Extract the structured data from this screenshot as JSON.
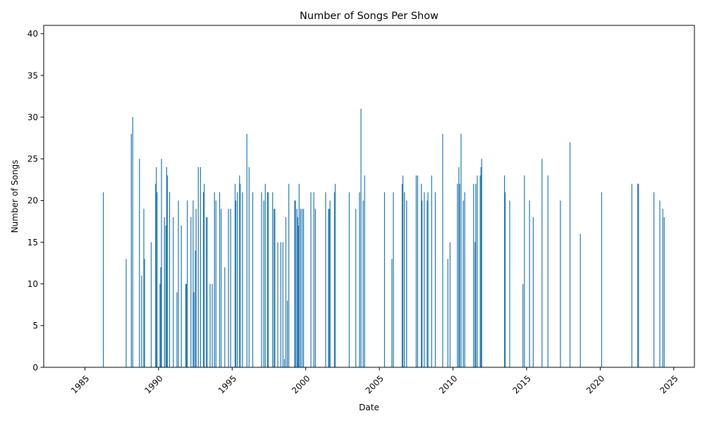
{
  "chart_data": {
    "type": "bar",
    "title": "Number of Songs Per Show",
    "xlabel": "Date",
    "ylabel": "Number of Songs",
    "xlim": [
      1982.2,
      2026.4
    ],
    "ylim": [
      0,
      41
    ],
    "x_ticks": [
      1985,
      1990,
      1995,
      2000,
      2005,
      2010,
      2015,
      2020,
      2025
    ],
    "y_ticks": [
      0,
      5,
      10,
      15,
      20,
      25,
      30,
      35,
      40
    ],
    "grid": false,
    "legend": "none",
    "bar_color": "#1f77b4",
    "x_unit": "decimal year",
    "points": [
      [
        1986.25,
        21
      ],
      [
        1987.8,
        13
      ],
      [
        1988.15,
        28
      ],
      [
        1988.25,
        30
      ],
      [
        1988.7,
        25
      ],
      [
        1988.85,
        11
      ],
      [
        1989.0,
        19
      ],
      [
        1989.05,
        13
      ],
      [
        1989.5,
        15
      ],
      [
        1989.8,
        22
      ],
      [
        1989.85,
        24
      ],
      [
        1989.9,
        21
      ],
      [
        1990.1,
        10
      ],
      [
        1990.15,
        12
      ],
      [
        1990.2,
        25
      ],
      [
        1990.4,
        18
      ],
      [
        1990.5,
        17
      ],
      [
        1990.55,
        24
      ],
      [
        1990.6,
        23
      ],
      [
        1990.75,
        21
      ],
      [
        1991.0,
        18
      ],
      [
        1991.25,
        9
      ],
      [
        1991.35,
        20
      ],
      [
        1991.55,
        17
      ],
      [
        1991.85,
        10
      ],
      [
        1991.9,
        10
      ],
      [
        1991.95,
        20
      ],
      [
        1992.2,
        18
      ],
      [
        1992.35,
        20
      ],
      [
        1992.4,
        9
      ],
      [
        1992.5,
        14
      ],
      [
        1992.55,
        19
      ],
      [
        1992.7,
        24
      ],
      [
        1992.85,
        24
      ],
      [
        1993.05,
        21
      ],
      [
        1993.1,
        22
      ],
      [
        1993.25,
        18
      ],
      [
        1993.3,
        18
      ],
      [
        1993.5,
        10
      ],
      [
        1993.65,
        10
      ],
      [
        1993.8,
        21
      ],
      [
        1993.9,
        20
      ],
      [
        1994.15,
        21
      ],
      [
        1994.25,
        19
      ],
      [
        1994.5,
        12
      ],
      [
        1994.75,
        19
      ],
      [
        1994.9,
        19
      ],
      [
        1995.2,
        22
      ],
      [
        1995.25,
        20
      ],
      [
        1995.35,
        21
      ],
      [
        1995.5,
        23
      ],
      [
        1995.55,
        22
      ],
      [
        1995.7,
        21
      ],
      [
        1996.0,
        28
      ],
      [
        1996.15,
        24
      ],
      [
        1996.4,
        21
      ],
      [
        1997.0,
        21
      ],
      [
        1997.15,
        20
      ],
      [
        1997.25,
        22
      ],
      [
        1997.4,
        21
      ],
      [
        1997.45,
        21
      ],
      [
        1997.75,
        21
      ],
      [
        1997.85,
        19
      ],
      [
        1997.9,
        19
      ],
      [
        1998.1,
        15
      ],
      [
        1998.3,
        15
      ],
      [
        1998.45,
        15
      ],
      [
        1998.55,
        1
      ],
      [
        1998.65,
        18
      ],
      [
        1998.75,
        8
      ],
      [
        1998.85,
        22
      ],
      [
        1999.25,
        20
      ],
      [
        1999.3,
        20
      ],
      [
        1999.4,
        19
      ],
      [
        1999.45,
        18
      ],
      [
        1999.5,
        17
      ],
      [
        1999.55,
        22
      ],
      [
        1999.65,
        19
      ],
      [
        1999.75,
        19
      ],
      [
        1999.85,
        19
      ],
      [
        2000.35,
        21
      ],
      [
        2000.55,
        21
      ],
      [
        2000.65,
        19
      ],
      [
        2001.35,
        21
      ],
      [
        2001.55,
        19
      ],
      [
        2001.6,
        19
      ],
      [
        2001.65,
        20
      ],
      [
        2001.95,
        21
      ],
      [
        2002.0,
        22
      ],
      [
        2002.95,
        21
      ],
      [
        2003.4,
        19
      ],
      [
        2003.65,
        21
      ],
      [
        2003.75,
        31
      ],
      [
        2003.9,
        20
      ],
      [
        2004.0,
        23
      ],
      [
        2005.35,
        21
      ],
      [
        2005.85,
        13
      ],
      [
        2005.95,
        21
      ],
      [
        2006.55,
        22
      ],
      [
        2006.6,
        23
      ],
      [
        2006.7,
        21
      ],
      [
        2006.85,
        20
      ],
      [
        2007.5,
        23
      ],
      [
        2007.6,
        23
      ],
      [
        2007.85,
        22
      ],
      [
        2007.9,
        20
      ],
      [
        2008.05,
        21
      ],
      [
        2008.25,
        20
      ],
      [
        2008.3,
        21
      ],
      [
        2008.55,
        23
      ],
      [
        2008.8,
        21
      ],
      [
        2009.3,
        28
      ],
      [
        2009.65,
        13
      ],
      [
        2009.8,
        15
      ],
      [
        2010.3,
        22
      ],
      [
        2010.4,
        24
      ],
      [
        2010.45,
        22
      ],
      [
        2010.55,
        28
      ],
      [
        2010.7,
        20
      ],
      [
        2010.8,
        21
      ],
      [
        2011.4,
        22
      ],
      [
        2011.5,
        15
      ],
      [
        2011.55,
        22
      ],
      [
        2011.65,
        23
      ],
      [
        2011.85,
        23
      ],
      [
        2011.9,
        24
      ],
      [
        2011.95,
        25
      ],
      [
        2013.5,
        23
      ],
      [
        2013.55,
        21
      ],
      [
        2013.85,
        20
      ],
      [
        2014.75,
        10
      ],
      [
        2014.85,
        23
      ],
      [
        2015.2,
        20
      ],
      [
        2015.45,
        18
      ],
      [
        2016.05,
        25
      ],
      [
        2016.45,
        23
      ],
      [
        2017.3,
        20
      ],
      [
        2017.95,
        27
      ],
      [
        2018.65,
        16
      ],
      [
        2020.1,
        21
      ],
      [
        2022.15,
        22
      ],
      [
        2022.55,
        22
      ],
      [
        2022.6,
        22
      ],
      [
        2023.65,
        21
      ],
      [
        2024.05,
        20
      ],
      [
        2024.25,
        19
      ],
      [
        2024.35,
        18
      ]
    ]
  }
}
